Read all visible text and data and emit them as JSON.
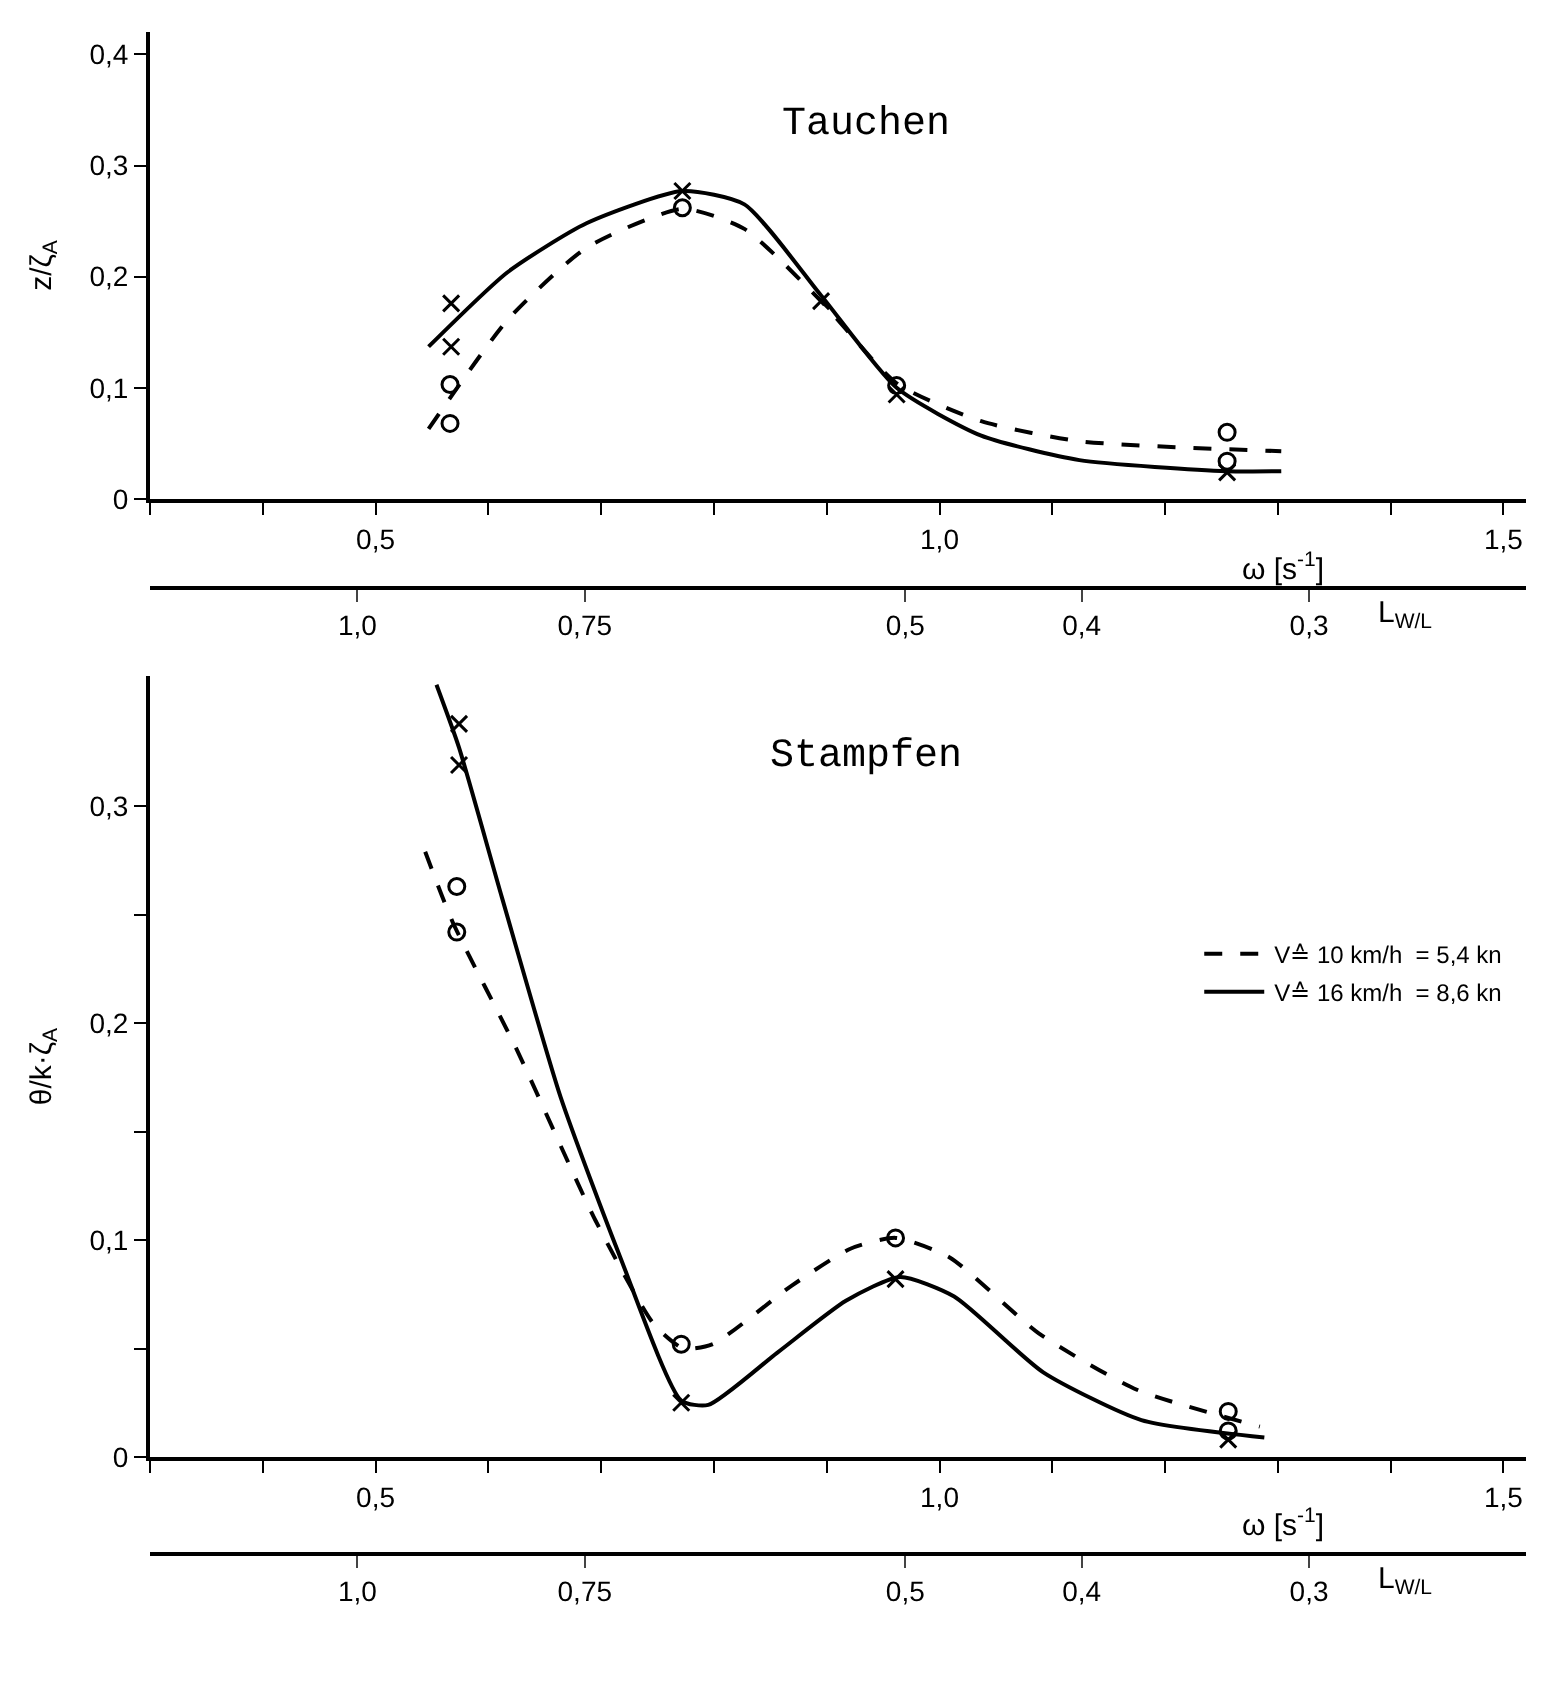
{
  "chart_data": [
    {
      "type": "line",
      "title": "Tauchen",
      "xlabel": "ω [s$^{-1}$]",
      "x2label": "L$_{W/L}$",
      "ylabel": "z/ζ$_{A}$",
      "xlim": [
        0.3,
        1.52
      ],
      "ylim": [
        0,
        0.42
      ],
      "xticks": [
        {
          "value": 0.3,
          "label": null
        },
        {
          "value": 0.4,
          "label": null
        },
        {
          "value": 0.5,
          "label": "0,5"
        },
        {
          "value": 0.6,
          "label": null
        },
        {
          "value": 0.7,
          "label": null
        },
        {
          "value": 0.8,
          "label": null
        },
        {
          "value": 0.9,
          "label": null
        },
        {
          "value": 1.0,
          "label": "1,0"
        },
        {
          "value": 1.1,
          "label": null
        },
        {
          "value": 1.2,
          "label": null
        },
        {
          "value": 1.3,
          "label": null
        },
        {
          "value": 1.4,
          "label": null
        },
        {
          "value": 1.5,
          "label": "1,5"
        }
      ],
      "x2lim": [
        1.3,
        0.228
      ],
      "log": "x2",
      "x2ticks": [
        {
          "value": 1.0,
          "label": "1,0"
        },
        {
          "value": 0.75,
          "label": "0,75"
        },
        {
          "value": 0.5,
          "label": "0,5"
        },
        {
          "value": 0.4,
          "label": "0,4"
        },
        {
          "value": 0.3,
          "label": "0,3"
        }
      ],
      "yticks": [
        0,
        {
          "value": 0.1,
          "label": "0,1"
        },
        {
          "value": 0.2,
          "label": "0,2"
        },
        {
          "value": 0.3,
          "label": "0,3"
        },
        {
          "value": 0.4,
          "label": "0,4"
        }
      ],
      "legend": false,
      "series": [
        {
          "type": "line",
          "color": "#000000",
          "line_style": "dashed",
          "marker": "none",
          "x": [
            0.547,
            0.617,
            0.687,
            0.772,
            0.827,
            0.895,
            0.962,
            1.037,
            1.124,
            1.303
          ],
          "values": [
            0.063,
            0.161,
            0.226,
            0.261,
            0.243,
            0.178,
            0.104,
            0.07,
            0.052,
            0.043
          ]
        },
        {
          "type": "line",
          "color": "#000000",
          "line_style": "solid",
          "marker": "none",
          "x": [
            0.547,
            0.617,
            0.687,
            0.772,
            0.827,
            0.895,
            0.962,
            1.037,
            1.124,
            1.255,
            1.303
          ],
          "values": [
            0.137,
            0.204,
            0.248,
            0.277,
            0.265,
            0.183,
            0.1,
            0.057,
            0.035,
            0.025,
            0.025
          ]
        },
        {
          "type": "scatter",
          "color": "#000000",
          "marker": "circle",
          "x": [
            0.566,
            0.566,
            0.772,
            0.962,
            1.255,
            1.255
          ],
          "values": [
            0.103,
            0.068,
            0.262,
            0.102,
            0.06,
            0.034
          ]
        },
        {
          "type": "scatter",
          "color": "#000000",
          "marker": "cross",
          "x": [
            0.567,
            0.567,
            0.772,
            0.895,
            0.962,
            1.255
          ],
          "values": [
            0.176,
            0.137,
            0.277,
            0.178,
            0.094,
            0.024
          ]
        }
      ]
    },
    {
      "type": "line",
      "title": "Stampfen",
      "xlabel": "ω [s$^{-1}$]",
      "x2label": "L$_{W/L}$",
      "ylabel": "θ/k·ζ$_{A}$",
      "xlim": [
        0.3,
        1.52
      ],
      "ylim": [
        0,
        0.36
      ],
      "xticks": [
        {
          "value": 0.3,
          "label": null
        },
        {
          "value": 0.4,
          "label": null
        },
        {
          "value": 0.5,
          "label": "0,5"
        },
        {
          "value": 0.6,
          "label": null
        },
        {
          "value": 0.7,
          "label": null
        },
        {
          "value": 0.8,
          "label": null
        },
        {
          "value": 0.9,
          "label": null
        },
        {
          "value": 1.0,
          "label": "1,0"
        },
        {
          "value": 1.1,
          "label": null
        },
        {
          "value": 1.2,
          "label": null
        },
        {
          "value": 1.3,
          "label": null
        },
        {
          "value": 1.4,
          "label": null
        },
        {
          "value": 1.5,
          "label": "1,5"
        }
      ],
      "x2lim": [
        1.3,
        0.228
      ],
      "log": "x2",
      "x2ticks": [
        {
          "value": 1.0,
          "label": "1,0"
        },
        {
          "value": 0.75,
          "label": "0,75"
        },
        {
          "value": 0.5,
          "label": "0,5"
        },
        {
          "value": 0.4,
          "label": "0,4"
        },
        {
          "value": 0.3,
          "label": "0,3"
        }
      ],
      "yticks": [
        0,
        {
          "value": 0.05,
          "label": null
        },
        {
          "value": 0.1,
          "label": "0,1"
        },
        {
          "value": 0.15,
          "label": null
        },
        {
          "value": 0.2,
          "label": "0,2"
        },
        {
          "value": 0.25,
          "label": null
        },
        {
          "value": 0.3,
          "label": "0,3"
        }
      ],
      "legend": "right",
      "series": [
        {
          "type": "line",
          "name": "V≙ 10 km/h  = 5,4 kn",
          "color": "#000000",
          "line_style": "dashed",
          "marker": "none",
          "x": [
            0.544,
            0.568,
            0.625,
            0.695,
            0.747,
            0.773,
            0.799,
            0.869,
            0.921,
            0.961,
            1.009,
            1.088,
            1.175,
            1.284
          ],
          "values": [
            0.279,
            0.247,
            0.188,
            0.109,
            0.061,
            0.05,
            0.052,
            0.079,
            0.096,
            0.101,
            0.092,
            0.057,
            0.031,
            0.014
          ]
        },
        {
          "type": "line",
          "name": "V≙ 16 km/h  = 8,6 kn",
          "color": "#000000",
          "line_style": "solid",
          "marker": "none",
          "x": [
            0.554,
            0.574,
            0.612,
            0.664,
            0.717,
            0.771,
            0.795,
            0.856,
            0.917,
            0.965,
            1.013,
            1.092,
            1.179,
            1.288
          ],
          "values": [
            0.356,
            0.327,
            0.258,
            0.166,
            0.092,
            0.026,
            0.024,
            0.048,
            0.072,
            0.083,
            0.074,
            0.039,
            0.017,
            0.009
          ]
        },
        {
          "type": "scatter",
          "color": "#000000",
          "marker": "circle",
          "x": [
            0.572,
            0.572,
            0.771,
            0.961,
            1.256,
            1.256
          ],
          "values": [
            0.263,
            0.242,
            0.052,
            0.101,
            0.021,
            0.012
          ]
        },
        {
          "type": "scatter",
          "color": "#000000",
          "marker": "cross",
          "x": [
            0.574,
            0.574,
            0.771,
            0.961,
            1.256
          ],
          "values": [
            0.338,
            0.319,
            0.025,
            0.082,
            0.008
          ]
        }
      ]
    }
  ]
}
